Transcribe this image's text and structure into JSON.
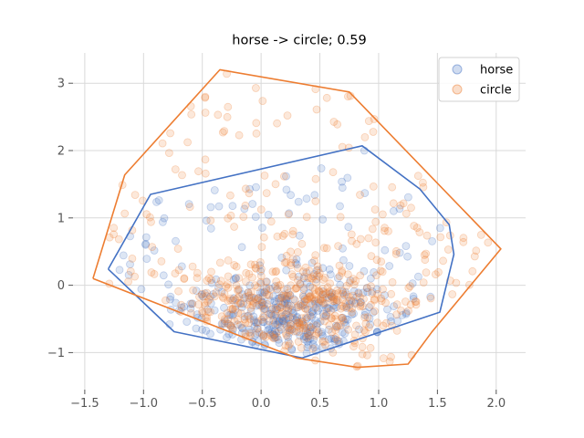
{
  "chart_data": {
    "type": "scatter",
    "title": "horse -> circle; 0.59",
    "xlabel": "",
    "ylabel": "",
    "xlim": [
      -1.6,
      2.25
    ],
    "ylim": [
      -1.55,
      3.45
    ],
    "xticks": [
      -1.5,
      -1.0,
      -0.5,
      0.0,
      0.5,
      1.0,
      1.5,
      2.0
    ],
    "xtick_labels": [
      "−1.5",
      "−1.0",
      "−0.5",
      "0.0",
      "0.5",
      "1.0",
      "1.5",
      "2.0"
    ],
    "yticks": [
      -1,
      0,
      1,
      2,
      3
    ],
    "ytick_labels": [
      "−1",
      "0",
      "1",
      "2",
      "3"
    ],
    "grid": true,
    "legend_position": "top-right",
    "series": [
      {
        "name": "horse",
        "color": "#4472c4",
        "hull": [
          [
            -1.3,
            0.24
          ],
          [
            -0.94,
            1.35
          ],
          [
            0.86,
            2.07
          ],
          [
            1.35,
            1.43
          ],
          [
            1.6,
            0.9
          ],
          [
            1.64,
            0.46
          ],
          [
            1.52,
            -0.4
          ],
          [
            0.35,
            -1.08
          ],
          [
            -0.74,
            -0.69
          ],
          [
            -1.3,
            0.24
          ]
        ],
        "cloud": {
          "count": 420,
          "seed": 11,
          "center": [
            0.2,
            -0.45
          ],
          "spread": [
            0.45,
            0.3
          ],
          "tail": 0.35
        }
      },
      {
        "name": "circle",
        "color": "#ed7d31",
        "hull": [
          [
            -1.43,
            0.1
          ],
          [
            -1.16,
            1.64
          ],
          [
            -0.35,
            3.2
          ],
          [
            0.75,
            2.87
          ],
          [
            2.04,
            0.54
          ],
          [
            1.45,
            -0.7
          ],
          [
            1.25,
            -1.17
          ],
          [
            0.82,
            -1.22
          ],
          [
            0.3,
            -1.08
          ],
          [
            -1.43,
            0.1
          ]
        ],
        "cloud": {
          "count": 560,
          "seed": 29,
          "center": [
            0.25,
            -0.3
          ],
          "spread": [
            0.5,
            0.38
          ],
          "tail": 0.45
        }
      }
    ]
  }
}
